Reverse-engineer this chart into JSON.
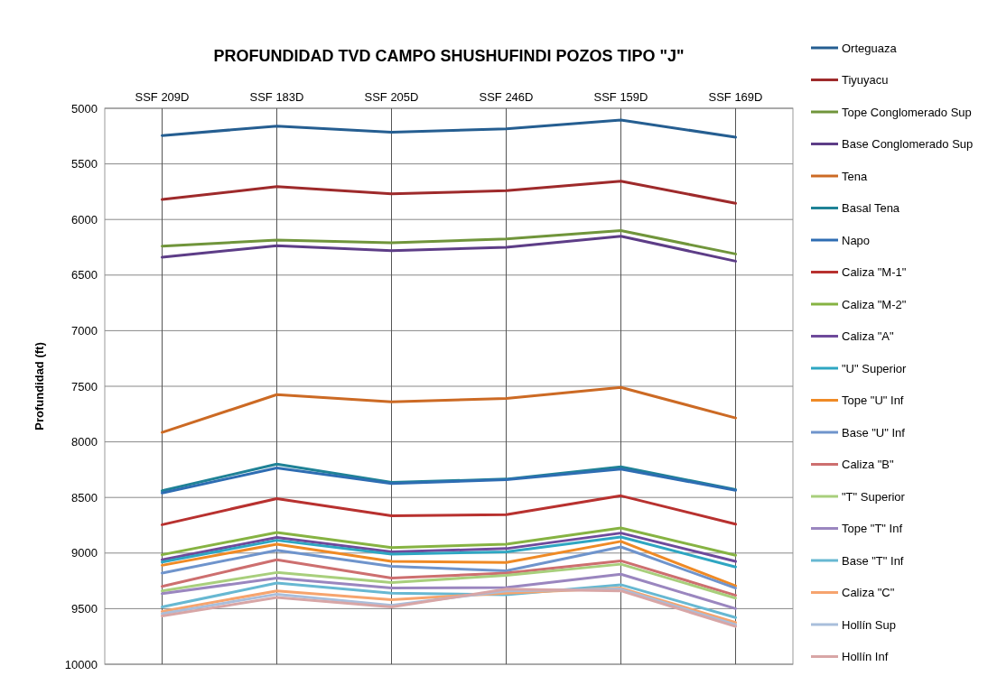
{
  "chart_data": {
    "type": "line",
    "title": "PROFUNDIDAD TVD CAMPO SHUSHUFINDI POZOS TIPO \"J\"",
    "ylabel": "Profundidad (ft)",
    "categories": [
      "SSF 209D",
      "SSF 183D",
      "SSF 205D",
      "SSF 246D",
      "SSF 159D",
      "SSF 169D"
    ],
    "ylim": [
      10000,
      5000
    ],
    "yticks": [
      5000,
      5500,
      6000,
      6500,
      7000,
      7500,
      8000,
      8500,
      9000,
      9500,
      10000
    ],
    "grid": true,
    "legend": "right",
    "marker": "none",
    "line_style": "solid",
    "series": [
      {
        "name": "Orteguaza",
        "color": "#255e91",
        "values": [
          5245,
          5160,
          5215,
          5185,
          5105,
          5260
        ]
      },
      {
        "name": "Tiyuyacu",
        "color": "#9e2a2b",
        "values": [
          5820,
          5705,
          5770,
          5740,
          5655,
          5855
        ]
      },
      {
        "name": "Tope Conglomerado Sup",
        "color": "#70953b",
        "values": [
          6240,
          6185,
          6210,
          6175,
          6100,
          6310
        ]
      },
      {
        "name": "Base Conglomerado Sup",
        "color": "#5d3d87",
        "values": [
          6340,
          6235,
          6280,
          6250,
          6150,
          6375
        ]
      },
      {
        "name": "Tena",
        "color": "#cc6a24",
        "values": [
          7915,
          7575,
          7640,
          7610,
          7510,
          7785
        ]
      },
      {
        "name": "Basal Tena",
        "color": "#1f8296",
        "values": [
          8440,
          8200,
          8365,
          8335,
          8225,
          8430
        ]
      },
      {
        "name": "Napo",
        "color": "#2e6db3",
        "values": [
          8460,
          8235,
          8375,
          8340,
          8245,
          8435
        ]
      },
      {
        "name": "Caliza \"M-1\"",
        "color": "#b8312f",
        "values": [
          8745,
          8510,
          8665,
          8655,
          8485,
          8740
        ]
      },
      {
        "name": "Caliza \"M-2\"",
        "color": "#86b342",
        "values": [
          9015,
          8815,
          8950,
          8920,
          8775,
          9020
        ]
      },
      {
        "name": "Caliza \"A\"",
        "color": "#6e4a9b",
        "values": [
          9060,
          8860,
          8990,
          8960,
          8820,
          9075
        ]
      },
      {
        "name": "\"U\" Superior",
        "color": "#2ea6c2",
        "values": [
          9080,
          8885,
          9010,
          8990,
          8855,
          9125
        ]
      },
      {
        "name": "Tope \"U\" Inf",
        "color": "#ef8a25",
        "values": [
          9110,
          8920,
          9075,
          9085,
          8895,
          9295
        ]
      },
      {
        "name": "Base \"U\" Inf",
        "color": "#6f94cc",
        "values": [
          9180,
          8975,
          9120,
          9160,
          8945,
          9315
        ]
      },
      {
        "name": "Caliza \"B\"",
        "color": "#cd6f6f",
        "values": [
          9300,
          9060,
          9225,
          9180,
          9070,
          9380
        ]
      },
      {
        "name": "\"T\" Superior",
        "color": "#a8cf7c",
        "values": [
          9340,
          9175,
          9265,
          9200,
          9100,
          9405
        ]
      },
      {
        "name": "Tope \"T\" Inf",
        "color": "#9a86bf",
        "values": [
          9365,
          9225,
          9315,
          9310,
          9190,
          9500
        ]
      },
      {
        "name": "Base \"T\" Inf",
        "color": "#67b8d2",
        "values": [
          9485,
          9270,
          9360,
          9375,
          9285,
          9580
        ]
      },
      {
        "name": "Caliza \"C\"",
        "color": "#f6a46e",
        "values": [
          9525,
          9340,
          9420,
          9360,
          9315,
          9625
        ]
      },
      {
        "name": "Hollín Sup",
        "color": "#a9bedb",
        "values": [
          9545,
          9370,
          9470,
          9340,
          9325,
          9645
        ]
      },
      {
        "name": "Hollín Inf",
        "color": "#d8a6a6",
        "values": [
          9565,
          9400,
          9485,
          9325,
          9340,
          9660
        ]
      }
    ]
  }
}
